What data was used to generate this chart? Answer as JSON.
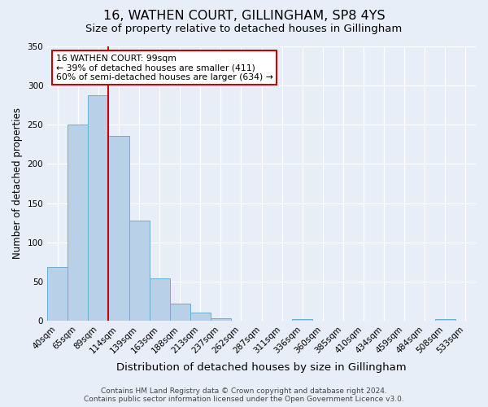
{
  "title": "16, WATHEN COURT, GILLINGHAM, SP8 4YS",
  "subtitle": "Size of property relative to detached houses in Gillingham",
  "xlabel": "Distribution of detached houses by size in Gillingham",
  "ylabel": "Number of detached properties",
  "footnote1": "Contains HM Land Registry data © Crown copyright and database right 2024.",
  "footnote2": "Contains public sector information licensed under the Open Government Licence v3.0.",
  "bin_labels": [
    "40sqm",
    "65sqm",
    "89sqm",
    "114sqm",
    "139sqm",
    "163sqm",
    "188sqm",
    "213sqm",
    "237sqm",
    "262sqm",
    "287sqm",
    "311sqm",
    "336sqm",
    "360sqm",
    "385sqm",
    "410sqm",
    "434sqm",
    "459sqm",
    "484sqm",
    "508sqm",
    "533sqm"
  ],
  "bar_values": [
    69,
    250,
    287,
    236,
    128,
    54,
    22,
    11,
    4,
    0,
    0,
    0,
    3,
    0,
    0,
    0,
    0,
    0,
    0,
    3,
    0
  ],
  "bar_color": "#b8d0e8",
  "bar_edgecolor": "#6aaed6",
  "vline_x_idx": 2,
  "vline_color": "#cc0000",
  "annotation_title": "16 WATHEN COURT: 99sqm",
  "annotation_line2": "← 39% of detached houses are smaller (411)",
  "annotation_line3": "60% of semi-detached houses are larger (634) →",
  "annotation_box_facecolor": "#ffffff",
  "annotation_box_edgecolor": "#cc0000",
  "ylim": [
    0,
    350
  ],
  "yticks": [
    0,
    50,
    100,
    150,
    200,
    250,
    300,
    350
  ],
  "background_color": "#e8eef7",
  "grid_color": "#ffffff",
  "title_fontsize": 11.5,
  "subtitle_fontsize": 9.5,
  "xlabel_fontsize": 9.5,
  "ylabel_fontsize": 8.5,
  "tick_fontsize": 7.5,
  "annotation_fontsize": 7.8,
  "footnote_fontsize": 6.5
}
